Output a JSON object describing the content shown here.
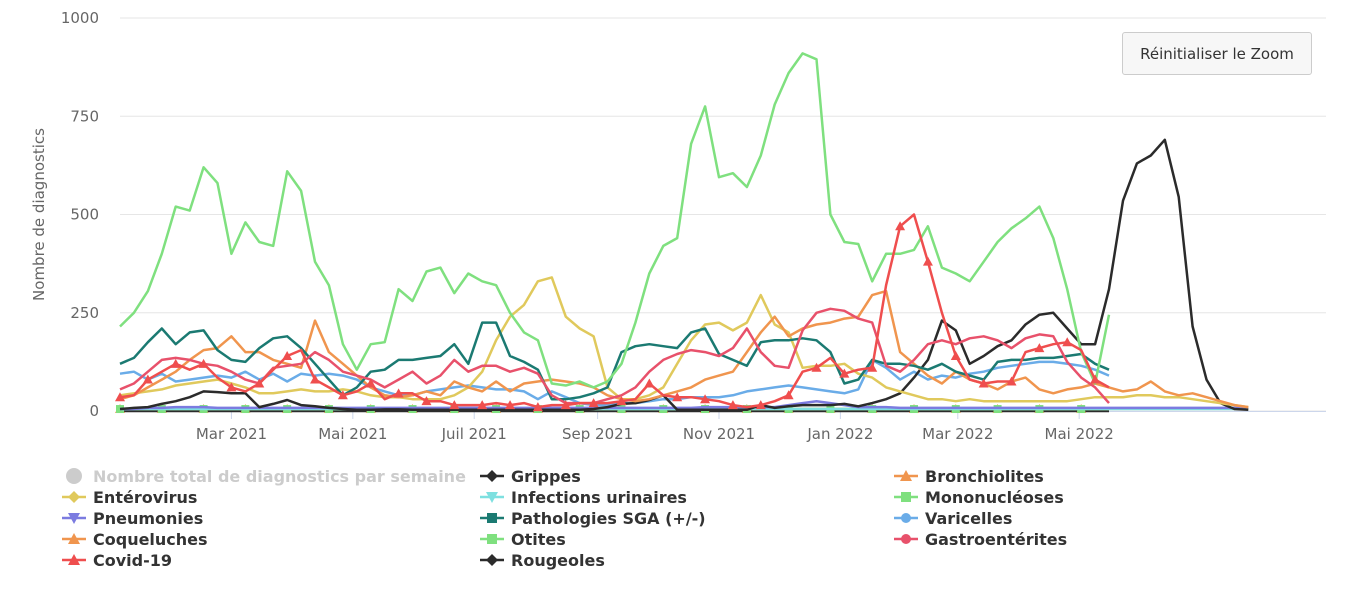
{
  "reset_zoom_label": "Réinitialiser le Zoom",
  "chart_data": {
    "type": "line",
    "ylabel": "Nombre de diagnostics",
    "ylim": [
      0,
      1000
    ],
    "yticks": [
      0,
      250,
      500,
      750,
      1000
    ],
    "x_start": "2021-01-04",
    "x_step_weeks": 1,
    "x_tick_labels": [
      {
        "date": "2021-03-01",
        "label": "Mar 2021"
      },
      {
        "date": "2021-05-01",
        "label": "Mai 2021"
      },
      {
        "date": "2021-07-01",
        "label": "Juil 2021"
      },
      {
        "date": "2021-09-01",
        "label": "Sep 2021"
      },
      {
        "date": "2021-11-01",
        "label": "Nov 2021"
      },
      {
        "date": "2022-01-01",
        "label": "Jan 2022"
      },
      {
        "date": "2022-03-01",
        "label": "Mar 2022"
      },
      {
        "date": "2022-05-01",
        "label": "Mai 2022"
      }
    ],
    "series": [
      {
        "name": "Nombre total de diagnostics par semaine",
        "color": "#cccccc",
        "marker": "circle",
        "visible": false,
        "values": []
      },
      {
        "name": "Grippes",
        "color": "#2b2b2b",
        "marker": "diamond",
        "visible": true,
        "values": [
          5,
          8,
          10,
          18,
          25,
          35,
          50,
          48,
          45,
          45,
          10,
          18,
          28,
          15,
          12,
          8,
          5,
          3,
          3,
          4,
          4,
          3,
          3,
          3,
          3,
          3,
          3,
          3,
          3,
          3,
          3,
          3,
          3,
          3,
          5,
          10,
          18,
          20,
          28,
          40,
          3,
          3,
          3,
          3,
          3,
          3,
          15,
          8,
          12,
          15,
          15,
          15,
          18,
          12,
          20,
          30,
          45,
          85,
          130,
          230,
          205,
          120,
          140,
          165,
          180,
          220,
          245,
          250,
          210,
          170,
          170,
          310,
          535,
          630,
          650,
          690,
          545,
          215,
          80,
          20,
          5,
          3
        ]
      },
      {
        "name": "Bronchiolites",
        "color": "#f0954e",
        "marker": "triangle",
        "visible": true,
        "values": [
          30,
          40,
          60,
          80,
          100,
          130,
          155,
          160,
          190,
          150,
          150,
          130,
          120,
          110,
          230,
          150,
          120,
          90,
          60,
          40,
          35,
          40,
          50,
          40,
          75,
          60,
          50,
          75,
          50,
          70,
          75,
          80,
          75,
          70,
          60,
          40,
          30,
          25,
          30,
          40,
          50,
          60,
          80,
          90,
          100,
          150,
          200,
          240,
          190,
          210,
          220,
          225,
          235,
          240,
          295,
          305,
          150,
          120,
          90,
          70,
          100,
          80,
          70,
          55,
          75,
          85,
          55,
          45,
          55,
          60,
          70,
          60,
          50,
          55,
          75,
          50,
          40,
          45,
          35,
          25,
          15,
          10
        ]
      },
      {
        "name": "Entérovirus",
        "color": "#e0c95c",
        "marker": "diamond",
        "visible": true,
        "values": [
          40,
          45,
          50,
          55,
          65,
          70,
          75,
          80,
          70,
          60,
          45,
          45,
          50,
          55,
          50,
          50,
          55,
          50,
          40,
          35,
          35,
          30,
          30,
          30,
          40,
          60,
          100,
          180,
          240,
          270,
          330,
          340,
          240,
          210,
          190,
          60,
          30,
          30,
          40,
          60,
          120,
          180,
          220,
          225,
          205,
          225,
          295,
          220,
          200,
          110,
          115,
          115,
          120,
          95,
          85,
          60,
          50,
          40,
          30,
          30,
          25,
          30,
          25,
          25,
          25,
          25,
          25,
          25,
          25,
          30,
          35,
          35,
          35,
          40,
          40,
          35,
          35,
          30,
          25,
          20,
          15,
          10
        ]
      },
      {
        "name": "Infections urinaires",
        "color": "#7ee0e0",
        "marker": "triangle-down",
        "visible": true,
        "values": [
          5,
          5,
          5,
          5,
          5,
          5,
          5,
          5,
          5,
          5,
          5,
          5,
          5,
          5,
          5,
          5,
          5,
          5,
          5,
          5,
          5,
          5,
          5,
          5,
          5,
          5,
          5,
          5,
          5,
          5,
          5,
          5,
          5,
          5,
          5,
          5,
          5,
          5,
          5,
          5,
          5,
          5,
          5,
          5,
          5,
          5,
          5,
          5,
          5,
          5,
          5,
          5,
          5,
          5,
          5,
          5,
          5,
          5,
          5,
          5,
          5,
          5,
          5,
          5,
          5,
          5,
          5,
          5,
          5,
          5,
          5,
          5,
          5,
          5,
          5,
          5,
          5,
          5,
          5,
          5,
          5,
          5
        ]
      },
      {
        "name": "Mononucléoses",
        "color": "#7fe07f",
        "marker": "square",
        "visible": true,
        "values": [
          215,
          250,
          305,
          400,
          520,
          510,
          620,
          580,
          400,
          480,
          430,
          420,
          610,
          560,
          380,
          320,
          170,
          105,
          170,
          175,
          310,
          280,
          355,
          365,
          300,
          350,
          330,
          320,
          250,
          200,
          180,
          70,
          65,
          75,
          60,
          75,
          120,
          225,
          350,
          420,
          440,
          680,
          775,
          595,
          605,
          570,
          650,
          780,
          860,
          910,
          895,
          500,
          430,
          425,
          330,
          400,
          400,
          410,
          470,
          365,
          350,
          330,
          380,
          430,
          465,
          490,
          520,
          440,
          310,
          150,
          70,
          245
        ]
      },
      {
        "name": "Pneumonies",
        "color": "#7b7be0",
        "marker": "triangle-down",
        "visible": true,
        "values": [
          5,
          5,
          8,
          8,
          10,
          10,
          10,
          8,
          8,
          8,
          8,
          8,
          8,
          8,
          8,
          8,
          8,
          8,
          8,
          8,
          8,
          8,
          8,
          8,
          8,
          8,
          8,
          8,
          8,
          8,
          8,
          8,
          8,
          8,
          8,
          8,
          8,
          8,
          8,
          8,
          8,
          8,
          10,
          10,
          10,
          10,
          10,
          10,
          15,
          20,
          25,
          20,
          15,
          10,
          10,
          10,
          8,
          8,
          8,
          8,
          8,
          8,
          8,
          8,
          8,
          8,
          8,
          8,
          8,
          8,
          8,
          8,
          8,
          8,
          8,
          8,
          8,
          8,
          8,
          8,
          8,
          8
        ]
      },
      {
        "name": "Pathologies SGA (+/-)",
        "color": "#1b7a72",
        "marker": "square",
        "visible": true,
        "values": [
          120,
          135,
          175,
          210,
          170,
          200,
          205,
          155,
          130,
          125,
          160,
          185,
          190,
          160,
          120,
          80,
          40,
          60,
          100,
          105,
          130,
          130,
          135,
          140,
          170,
          120,
          225,
          225,
          140,
          125,
          105,
          30,
          30,
          35,
          45,
          60,
          150,
          165,
          170,
          165,
          160,
          200,
          210,
          145,
          130,
          115,
          175,
          180,
          180,
          185,
          180,
          150,
          70,
          80,
          130,
          120,
          120,
          115,
          105,
          120,
          100,
          90,
          80,
          125,
          130,
          130,
          135,
          135,
          140,
          145,
          120,
          105
        ]
      },
      {
        "name": "Varicelles",
        "color": "#6aace8",
        "marker": "circle",
        "visible": true,
        "values": [
          95,
          100,
          80,
          95,
          75,
          80,
          85,
          90,
          85,
          100,
          80,
          95,
          75,
          95,
          90,
          95,
          90,
          80,
          60,
          50,
          40,
          40,
          50,
          55,
          60,
          65,
          60,
          55,
          55,
          50,
          30,
          50,
          35,
          20,
          15,
          15,
          20,
          20,
          25,
          30,
          30,
          35,
          35,
          35,
          40,
          50,
          55,
          60,
          65,
          60,
          55,
          50,
          45,
          55,
          130,
          110,
          80,
          100,
          80,
          90,
          85,
          95,
          100,
          110,
          115,
          120,
          125,
          125,
          120,
          115,
          105,
          90
        ]
      },
      {
        "name": "Coqueluches",
        "color": "#f0954e",
        "marker": "triangle",
        "visible": true,
        "values": [
          5,
          5,
          5,
          5,
          5,
          5,
          5,
          5,
          5,
          5,
          5,
          5,
          5,
          5,
          5,
          5,
          5,
          5,
          5,
          5,
          5,
          5,
          5,
          5,
          5,
          5,
          5,
          5,
          5,
          5,
          5,
          5,
          5,
          5,
          5,
          5,
          5,
          5,
          5,
          5,
          5,
          5,
          5,
          5,
          5,
          5,
          5,
          5,
          5,
          5,
          5,
          5,
          5,
          5,
          5,
          5,
          5,
          5,
          5,
          5,
          5,
          5,
          5,
          5,
          5,
          5,
          5,
          5,
          5,
          5,
          5,
          5
        ]
      },
      {
        "name": "Otites",
        "color": "#7fe07f",
        "marker": "square",
        "visible": true,
        "values": [
          5,
          5,
          5,
          5,
          5,
          5,
          5,
          5,
          5,
          5,
          5,
          5,
          5,
          5,
          5,
          5,
          5,
          5,
          5,
          5,
          5,
          5,
          5,
          5,
          5,
          5,
          5,
          5,
          5,
          5,
          5,
          5,
          5,
          5,
          5,
          5,
          5,
          5,
          5,
          5,
          5,
          5,
          5,
          5,
          5,
          5,
          5,
          5,
          5,
          5,
          5,
          5,
          5,
          5,
          5,
          5,
          5,
          5,
          5,
          5,
          5,
          5,
          5,
          5,
          5,
          5,
          5,
          5,
          5,
          5,
          5,
          5
        ]
      },
      {
        "name": "Gastroentérites",
        "color": "#e8516b",
        "marker": "circle",
        "visible": true,
        "values": [
          55,
          70,
          100,
          130,
          135,
          130,
          120,
          115,
          100,
          80,
          70,
          110,
          115,
          120,
          150,
          130,
          100,
          90,
          80,
          60,
          80,
          100,
          70,
          90,
          130,
          100,
          115,
          115,
          100,
          110,
          95,
          40,
          20,
          20,
          20,
          30,
          40,
          60,
          100,
          130,
          145,
          155,
          150,
          140,
          160,
          210,
          150,
          115,
          110,
          205,
          250,
          260,
          255,
          235,
          225,
          115,
          100,
          130,
          170,
          180,
          170,
          185,
          190,
          180,
          160,
          185,
          195,
          190,
          125,
          85,
          60,
          20
        ]
      },
      {
        "name": "Covid-19",
        "color": "#ef4e4e",
        "marker": "triangle",
        "visible": true,
        "values": [
          35,
          40,
          80,
          100,
          120,
          105,
          120,
          85,
          60,
          50,
          70,
          105,
          140,
          155,
          80,
          60,
          40,
          50,
          70,
          30,
          45,
          45,
          25,
          25,
          15,
          15,
          15,
          20,
          15,
          20,
          10,
          15,
          15,
          20,
          20,
          20,
          25,
          30,
          70,
          40,
          35,
          35,
          30,
          25,
          15,
          10,
          15,
          25,
          40,
          100,
          110,
          135,
          95,
          105,
          110,
          320,
          470,
          500,
          380,
          250,
          140,
          80,
          70,
          75,
          75,
          150,
          160,
          170,
          175,
          155,
          80,
          60
        ]
      },
      {
        "name": "Rougeoles",
        "color": "#2b2b2b",
        "marker": "diamond",
        "visible": true,
        "values": [
          0,
          0,
          0,
          0,
          0,
          0,
          0,
          0,
          0,
          0,
          0,
          0,
          0,
          0,
          0,
          0,
          0,
          0,
          0,
          0,
          0,
          0,
          0,
          0,
          0,
          0,
          0,
          0,
          0,
          0,
          0,
          0,
          0,
          0,
          0,
          0,
          0,
          0,
          0,
          0,
          0,
          0,
          0,
          0,
          0,
          0,
          0,
          0,
          0,
          0,
          0,
          0,
          0,
          0,
          0,
          0,
          0,
          0,
          0,
          0,
          0,
          0,
          0,
          0,
          0,
          0,
          0,
          0,
          0,
          0,
          0,
          0
        ]
      }
    ]
  }
}
